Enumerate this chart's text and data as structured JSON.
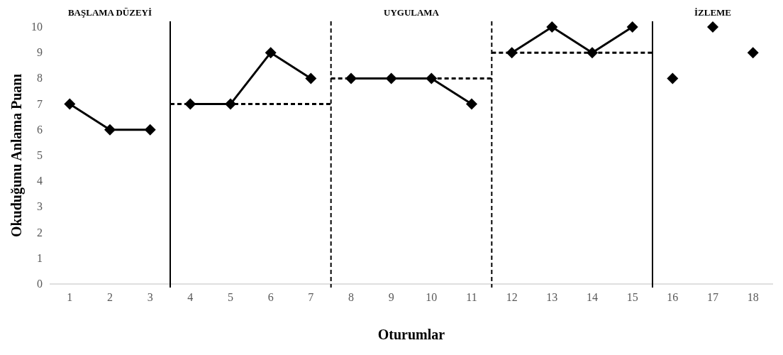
{
  "chart_data": {
    "type": "line",
    "xlabel": "Oturumlar",
    "ylabel": "Okuduğunu Anlama Puanı",
    "xlim": [
      0.5,
      18.5
    ],
    "xticks": [
      1,
      2,
      3,
      4,
      5,
      6,
      7,
      8,
      9,
      10,
      11,
      12,
      13,
      14,
      15,
      16,
      17,
      18
    ],
    "ylim": [
      0,
      10
    ],
    "yticks": [
      0,
      1,
      2,
      3,
      4,
      5,
      6,
      7,
      8,
      9,
      10
    ],
    "marker": "diamond",
    "grid": false,
    "series": [
      {
        "color": "#000000",
        "x": [
          1,
          2,
          3
        ],
        "values": [
          7,
          6,
          6
        ]
      },
      {
        "color": "#000000",
        "x": [
          4,
          5,
          6,
          7
        ],
        "values": [
          7,
          7,
          9,
          8
        ]
      },
      {
        "color": "#000000",
        "x": [
          8,
          9,
          10,
          11
        ],
        "values": [
          8,
          8,
          8,
          7
        ]
      },
      {
        "color": "#000000",
        "x": [
          12,
          13,
          14,
          15
        ],
        "values": [
          9,
          10,
          9,
          10
        ]
      },
      {
        "type": "scatter",
        "color": "#000000",
        "x": [
          16,
          17,
          18
        ],
        "values": [
          8,
          10,
          9
        ]
      },
      {
        "color": "#000000",
        "marker": "none",
        "line_style": "dashed",
        "x": [
          3.5,
          7.5
        ],
        "values": [
          7,
          7
        ]
      },
      {
        "color": "#000000",
        "marker": "none",
        "line_style": "dashed",
        "x": [
          7.5,
          11.5
        ],
        "values": [
          8,
          8
        ]
      },
      {
        "color": "#000000",
        "marker": "none",
        "line_style": "dashed",
        "x": [
          11.5,
          15.5
        ],
        "values": [
          9,
          9
        ]
      }
    ],
    "ref_lines": [
      {
        "axis": "x",
        "value": 3.5,
        "color": "#000000",
        "line_style": "solid"
      },
      {
        "axis": "x",
        "value": 7.5,
        "color": "#000000",
        "line_style": "dashed"
      },
      {
        "axis": "x",
        "value": 11.5,
        "color": "#000000",
        "line_style": "dashed"
      },
      {
        "axis": "x",
        "value": 15.5,
        "color": "#000000",
        "line_style": "solid"
      }
    ],
    "annotations": [
      "BAŞLAMA DÜZEYİ",
      "UYGULAMA",
      "İZLEME"
    ]
  }
}
